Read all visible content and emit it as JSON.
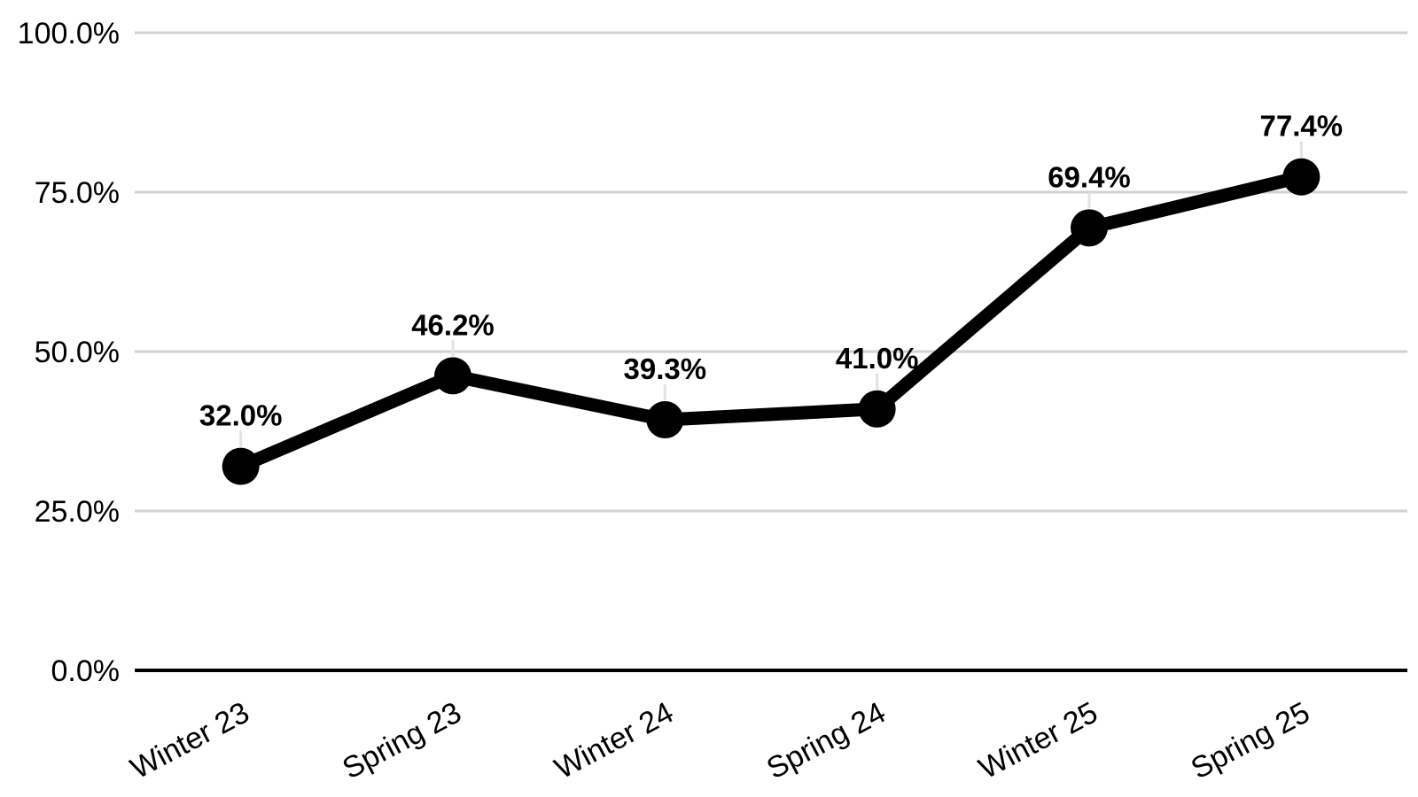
{
  "chart_data": {
    "type": "line",
    "categories": [
      "Winter 23",
      "Spring 23",
      "Winter 24",
      "Spring 24",
      "Winter 25",
      "Spring 25"
    ],
    "values": [
      32.0,
      46.2,
      39.3,
      41.0,
      69.4,
      77.4
    ],
    "point_labels": [
      "32.0%",
      "46.2%",
      "39.3%",
      "41.0%",
      "69.4%",
      "77.4%"
    ],
    "y_ticks": [
      {
        "value": 0,
        "label": "0.0%"
      },
      {
        "value": 25,
        "label": "25.0%"
      },
      {
        "value": 50,
        "label": "50.0%"
      },
      {
        "value": 75,
        "label": "75.0%"
      },
      {
        "value": 100,
        "label": "100.0%"
      }
    ],
    "title": "",
    "xlabel": "",
    "ylabel": "",
    "ylim": [
      0,
      100
    ],
    "grid": true,
    "legend": "none",
    "colors": {
      "series": "#000000",
      "point": "#000000",
      "grid": "#d2d2d2",
      "axis": "#000000",
      "text": "#000000",
      "leader": "#e2e2e2",
      "background": "#ffffff"
    }
  }
}
